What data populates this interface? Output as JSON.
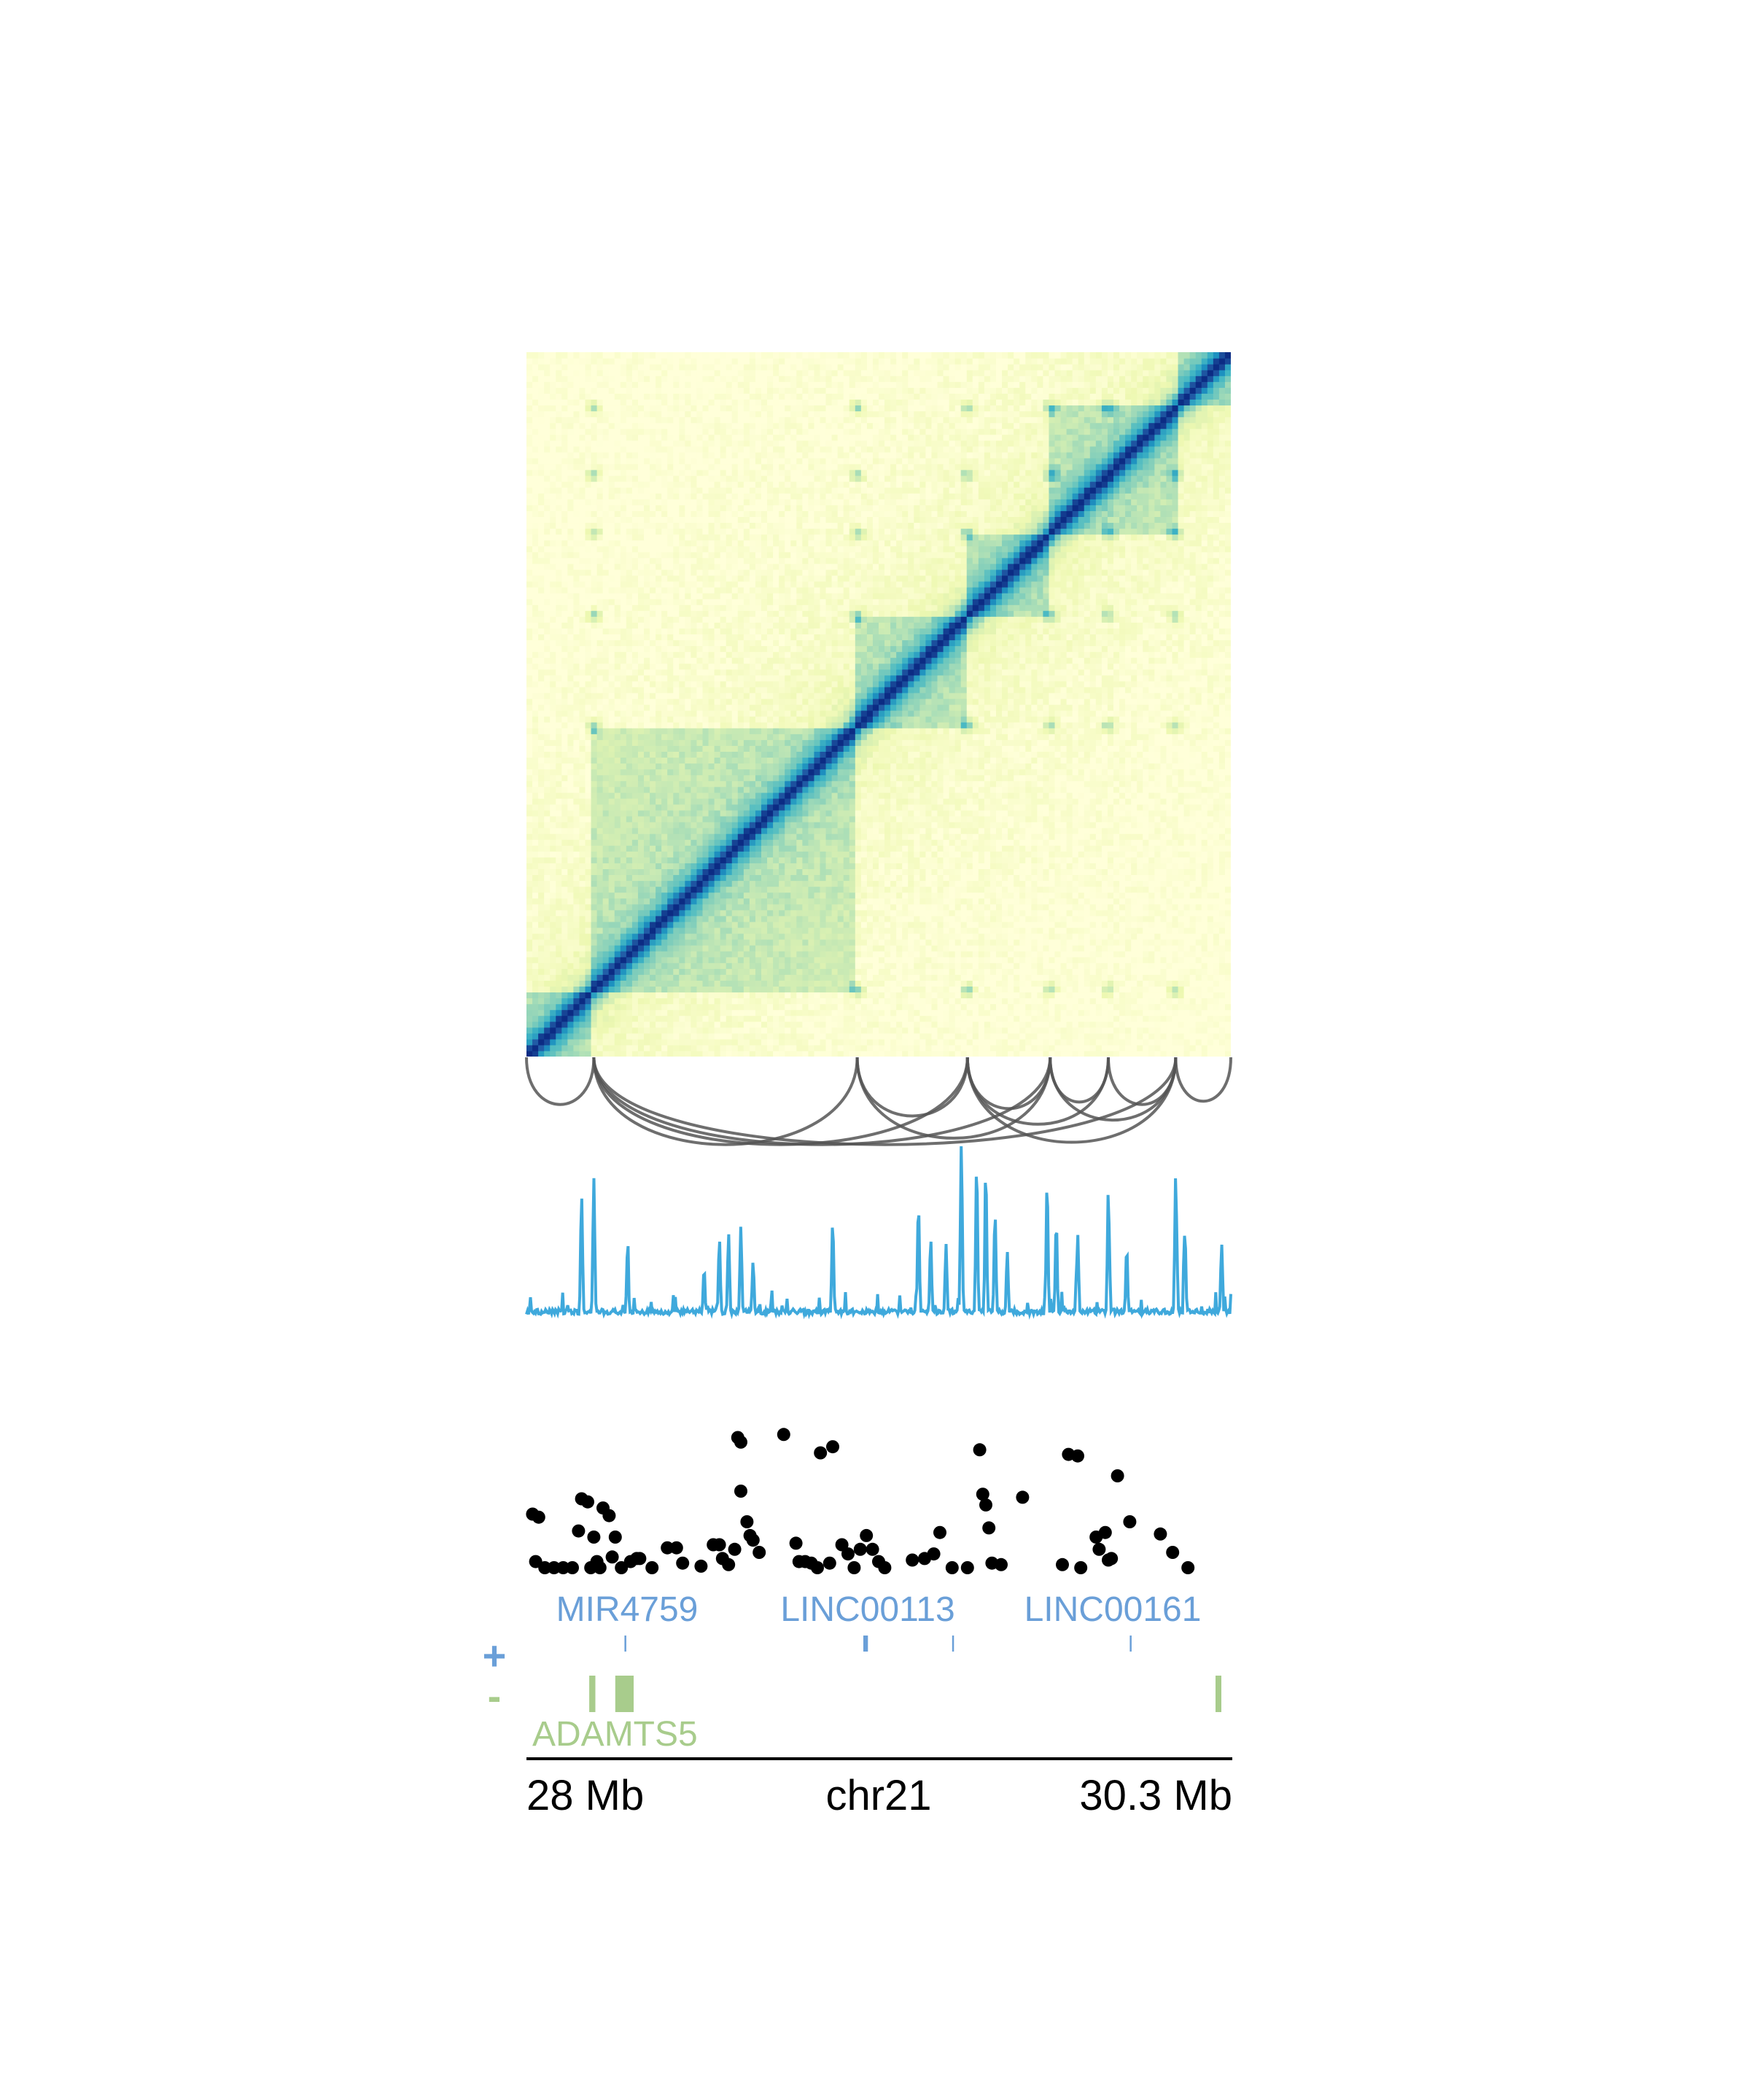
{
  "chart_data": [
    {
      "type": "heatmap",
      "title": "",
      "region": {
        "chrom": "chr21",
        "start_mb": 28.0,
        "end_mb": 30.3
      },
      "colormap": [
        "#ffffd9",
        "#edf8b1",
        "#c7e9b4",
        "#7fcdbb",
        "#41b6c4",
        "#1d91c0",
        "#225ea8",
        "#0c2c84"
      ],
      "domains_mb": [
        [
          28.0,
          28.22
        ],
        [
          28.22,
          29.08
        ],
        [
          29.08,
          29.44
        ],
        [
          29.44,
          29.71
        ],
        [
          29.71,
          30.12
        ],
        [
          30.12,
          30.3
        ]
      ],
      "loop_anchors_mb": [
        28.22,
        29.08,
        29.44,
        29.71,
        29.9,
        30.12
      ]
    },
    {
      "type": "arcs",
      "color": "#555555",
      "arcs_mb": [
        [
          28.0,
          28.22
        ],
        [
          28.22,
          29.08
        ],
        [
          28.22,
          29.44
        ],
        [
          28.22,
          29.71
        ],
        [
          28.22,
          30.12
        ],
        [
          29.08,
          29.44
        ],
        [
          29.08,
          29.71
        ],
        [
          29.44,
          29.71
        ],
        [
          29.44,
          29.9
        ],
        [
          29.44,
          30.12
        ],
        [
          29.71,
          29.9
        ],
        [
          29.71,
          30.12
        ],
        [
          29.9,
          30.12
        ],
        [
          30.12,
          30.3
        ]
      ]
    },
    {
      "type": "line",
      "color": "#3fa9dc",
      "ylim": [
        0,
        100
      ],
      "peaks": [
        {
          "x": 28.18,
          "y": 70
        },
        {
          "x": 28.22,
          "y": 80
        },
        {
          "x": 28.33,
          "y": 38
        },
        {
          "x": 28.58,
          "y": 28
        },
        {
          "x": 28.63,
          "y": 45
        },
        {
          "x": 28.66,
          "y": 48
        },
        {
          "x": 28.7,
          "y": 52
        },
        {
          "x": 28.74,
          "y": 32
        },
        {
          "x": 29.0,
          "y": 55
        },
        {
          "x": 29.28,
          "y": 65
        },
        {
          "x": 29.32,
          "y": 45
        },
        {
          "x": 29.37,
          "y": 42
        },
        {
          "x": 29.42,
          "y": 100
        },
        {
          "x": 29.47,
          "y": 88
        },
        {
          "x": 29.5,
          "y": 80
        },
        {
          "x": 29.53,
          "y": 60
        },
        {
          "x": 29.57,
          "y": 38
        },
        {
          "x": 29.7,
          "y": 78
        },
        {
          "x": 29.73,
          "y": 55
        },
        {
          "x": 29.8,
          "y": 48
        },
        {
          "x": 29.9,
          "y": 73
        },
        {
          "x": 29.96,
          "y": 40
        },
        {
          "x": 30.12,
          "y": 82
        },
        {
          "x": 30.15,
          "y": 50
        },
        {
          "x": 30.27,
          "y": 42
        }
      ]
    },
    {
      "type": "scatter",
      "color": "#000000",
      "ylim": [
        0,
        1
      ],
      "points": [
        {
          "x": 28.02,
          "y": 0.35
        },
        {
          "x": 28.04,
          "y": 0.33
        },
        {
          "x": 28.03,
          "y": 0.04
        },
        {
          "x": 28.06,
          "y": 0.0
        },
        {
          "x": 28.09,
          "y": 0.0
        },
        {
          "x": 28.12,
          "y": 0.0
        },
        {
          "x": 28.15,
          "y": 0.0
        },
        {
          "x": 28.17,
          "y": 0.24
        },
        {
          "x": 28.18,
          "y": 0.45
        },
        {
          "x": 28.2,
          "y": 0.43
        },
        {
          "x": 28.21,
          "y": 0.0
        },
        {
          "x": 28.22,
          "y": 0.2
        },
        {
          "x": 28.23,
          "y": 0.04
        },
        {
          "x": 28.24,
          "y": 0.0
        },
        {
          "x": 28.25,
          "y": 0.39
        },
        {
          "x": 28.27,
          "y": 0.34
        },
        {
          "x": 28.28,
          "y": 0.07
        },
        {
          "x": 28.29,
          "y": 0.2
        },
        {
          "x": 28.31,
          "y": 0.0
        },
        {
          "x": 28.34,
          "y": 0.04
        },
        {
          "x": 28.36,
          "y": 0.06
        },
        {
          "x": 28.37,
          "y": 0.06
        },
        {
          "x": 28.41,
          "y": 0.0
        },
        {
          "x": 28.46,
          "y": 0.13
        },
        {
          "x": 28.49,
          "y": 0.13
        },
        {
          "x": 28.51,
          "y": 0.03
        },
        {
          "x": 28.57,
          "y": 0.01
        },
        {
          "x": 28.61,
          "y": 0.15
        },
        {
          "x": 28.63,
          "y": 0.15
        },
        {
          "x": 28.64,
          "y": 0.06
        },
        {
          "x": 28.66,
          "y": 0.02
        },
        {
          "x": 28.68,
          "y": 0.12
        },
        {
          "x": 28.69,
          "y": 0.85
        },
        {
          "x": 28.7,
          "y": 0.82
        },
        {
          "x": 28.7,
          "y": 0.5
        },
        {
          "x": 28.72,
          "y": 0.3
        },
        {
          "x": 28.73,
          "y": 0.21
        },
        {
          "x": 28.74,
          "y": 0.18
        },
        {
          "x": 28.76,
          "y": 0.1
        },
        {
          "x": 28.84,
          "y": 0.87
        },
        {
          "x": 28.88,
          "y": 0.16
        },
        {
          "x": 28.89,
          "y": 0.04
        },
        {
          "x": 28.91,
          "y": 0.04
        },
        {
          "x": 28.93,
          "y": 0.03
        },
        {
          "x": 28.95,
          "y": 0.0
        },
        {
          "x": 28.96,
          "y": 0.75
        },
        {
          "x": 28.99,
          "y": 0.03
        },
        {
          "x": 29.0,
          "y": 0.79
        },
        {
          "x": 29.03,
          "y": 0.15
        },
        {
          "x": 29.05,
          "y": 0.09
        },
        {
          "x": 29.07,
          "y": 0.0
        },
        {
          "x": 29.09,
          "y": 0.12
        },
        {
          "x": 29.11,
          "y": 0.21
        },
        {
          "x": 29.13,
          "y": 0.12
        },
        {
          "x": 29.15,
          "y": 0.04
        },
        {
          "x": 29.17,
          "y": 0.0
        },
        {
          "x": 29.26,
          "y": 0.05
        },
        {
          "x": 29.3,
          "y": 0.06
        },
        {
          "x": 29.33,
          "y": 0.09
        },
        {
          "x": 29.35,
          "y": 0.23
        },
        {
          "x": 29.39,
          "y": 0.0
        },
        {
          "x": 29.44,
          "y": 0.0
        },
        {
          "x": 29.48,
          "y": 0.77
        },
        {
          "x": 29.49,
          "y": 0.48
        },
        {
          "x": 29.5,
          "y": 0.41
        },
        {
          "x": 29.51,
          "y": 0.26
        },
        {
          "x": 29.52,
          "y": 0.03
        },
        {
          "x": 29.55,
          "y": 0.02
        },
        {
          "x": 29.62,
          "y": 0.46
        },
        {
          "x": 29.75,
          "y": 0.02
        },
        {
          "x": 29.77,
          "y": 0.74
        },
        {
          "x": 29.8,
          "y": 0.73
        },
        {
          "x": 29.81,
          "y": 0.0
        },
        {
          "x": 29.86,
          "y": 0.2
        },
        {
          "x": 29.87,
          "y": 0.12
        },
        {
          "x": 29.89,
          "y": 0.23
        },
        {
          "x": 29.9,
          "y": 0.05
        },
        {
          "x": 29.91,
          "y": 0.06
        },
        {
          "x": 29.93,
          "y": 0.6
        },
        {
          "x": 29.97,
          "y": 0.3
        },
        {
          "x": 30.07,
          "y": 0.22
        },
        {
          "x": 30.11,
          "y": 0.1
        },
        {
          "x": 30.16,
          "y": 0.0
        }
      ]
    },
    {
      "type": "genes",
      "plus_strand": [
        {
          "name": "MIR4759",
          "start": 28.32,
          "end": 28.321
        },
        {
          "name": "LINC00113",
          "start": 29.1,
          "end": 29.115
        },
        {
          "name": "",
          "start": 29.39,
          "end": 29.395
        },
        {
          "name": "LINC00161",
          "start": 29.97,
          "end": 29.972
        }
      ],
      "minus_strand": [
        {
          "name": "",
          "start": 28.205,
          "end": 28.225
        },
        {
          "name": "ADAMTS5",
          "start": 28.29,
          "end": 28.35
        },
        {
          "name": "",
          "start": 30.25,
          "end": 30.265
        }
      ]
    }
  ],
  "genes": {
    "plus_symbol": "+",
    "minus_symbol": "-",
    "plus_labels": [
      {
        "text": "MIR4759",
        "pos_mb": 28.33
      },
      {
        "text": "LINC00113",
        "pos_mb": 29.1
      },
      {
        "text": "LINC00161",
        "pos_mb": 29.95
      }
    ],
    "minus_labels": [
      {
        "text": "ADAMTS5",
        "pos_mb": 28.03
      }
    ],
    "plus_color": "#6a9fd8",
    "minus_color": "#a8cc8c"
  },
  "axis": {
    "start_label": "28 Mb",
    "chrom_label": "chr21",
    "end_label": "30.3 Mb"
  }
}
